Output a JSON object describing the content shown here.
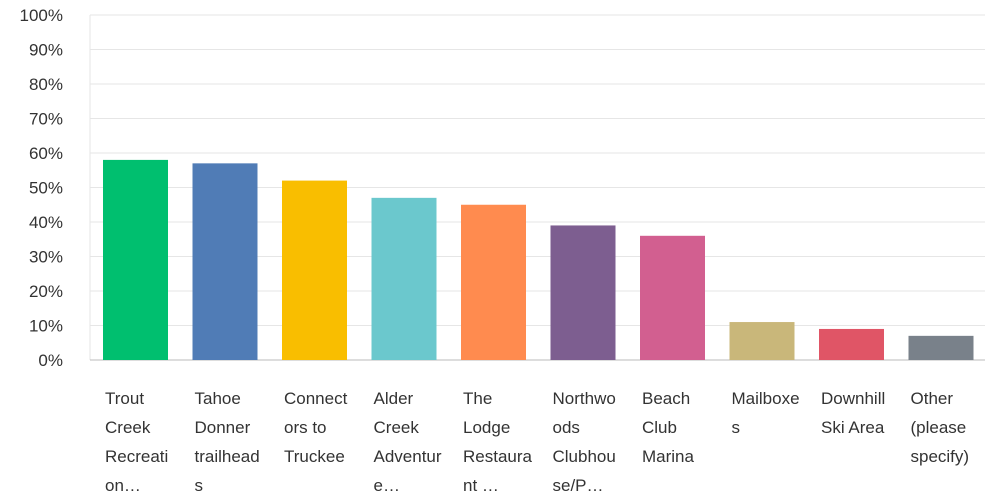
{
  "chart_data": {
    "type": "bar",
    "categories": [
      "Trout Creek Recreation…",
      "Tahoe Donner trailheads",
      "Connectors to Truckee",
      "Alder Creek Adventure…",
      "The Lodge Restaurant …",
      "Northwoods Clubhouse/P…",
      "Beach Club Marina",
      "Mailboxes",
      "Downhill Ski Area",
      "Other (please specify)"
    ],
    "values": [
      58,
      57,
      52,
      47,
      45,
      39,
      36,
      11,
      9,
      7
    ],
    "colors": [
      "#00bf6f",
      "#507cb6",
      "#f9be00",
      "#6bc8cd",
      "#ff8b4f",
      "#7d5e90",
      "#d25f90",
      "#c9b77a",
      "#e05566",
      "#79818a"
    ],
    "ylim": [
      0,
      100
    ],
    "yticks": [
      {
        "value": 0,
        "label": "0%"
      },
      {
        "value": 10,
        "label": "10%"
      },
      {
        "value": 20,
        "label": "20%"
      },
      {
        "value": 30,
        "label": "30%"
      },
      {
        "value": 40,
        "label": "40%"
      },
      {
        "value": 50,
        "label": "50%"
      },
      {
        "value": 60,
        "label": "60%"
      },
      {
        "value": 70,
        "label": "70%"
      },
      {
        "value": 80,
        "label": "80%"
      },
      {
        "value": 90,
        "label": "90%"
      },
      {
        "value": 100,
        "label": "100%"
      }
    ],
    "grid": true
  }
}
